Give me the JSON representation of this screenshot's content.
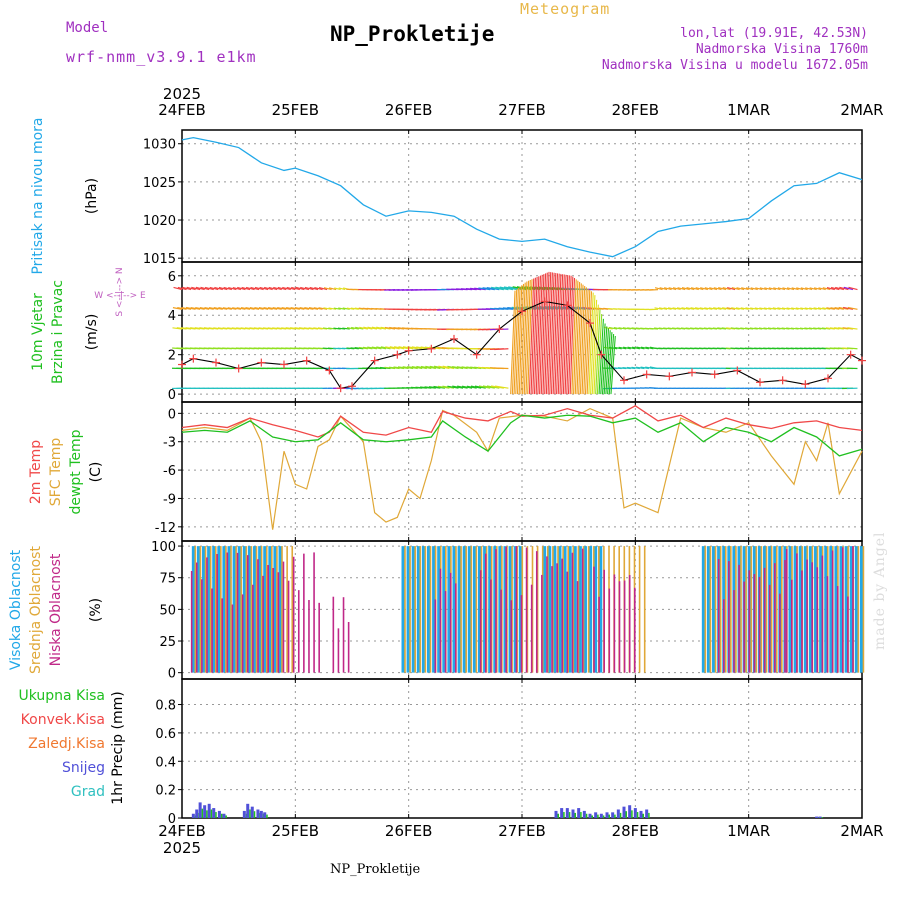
{
  "header": {
    "title": "NP_Prokletije",
    "meteogram": "Meteogram",
    "model_label": "Model",
    "model_name": "wrf-nmm_v3.9.1 e1km",
    "lonlat": "lon,lat (19.91E, 42.53N)",
    "elevation": "Nadmorska Visina 1760m",
    "model_elevation": "Nadmorska Visina u modelu 1672.05m"
  },
  "footer": {
    "station": "NP_Prokletije",
    "credit": "made by Angel"
  },
  "colors": {
    "pressure": "#22a8e8",
    "temp2m": "#f04848",
    "sfc": "#e0a838",
    "dew": "#20c020",
    "high_cloud": "#22a8e8",
    "mid_cloud": "#e0a838",
    "low_cloud": "#c02888",
    "total": "#20c020",
    "conv": "#f04848",
    "frozen": "#f07830",
    "snow": "#5050d8",
    "hail": "#30c0c0",
    "wind_axis": "#20c020",
    "dir_label": "#c060c0"
  },
  "chart_data": [
    {
      "type": "line",
      "panel": "pressure",
      "ylabel": "Pritisak na nivou mora",
      "unit": "(hPa)",
      "ylim": [
        1014.5,
        1031.8
      ],
      "yticks": [
        1015,
        1020,
        1025,
        1030
      ],
      "x_dates": [
        "24FEB",
        "25FEB",
        "26FEB",
        "27FEB",
        "28FEB",
        "1MAR",
        "2MAR"
      ],
      "year": "2025",
      "grid": true,
      "series": [
        {
          "x": [
            0,
            0.1,
            0.3,
            0.5,
            0.7,
            0.9,
            1.0,
            1.2,
            1.4,
            1.6,
            1.8,
            2.0,
            2.2,
            2.4,
            2.6,
            2.8,
            3.0,
            3.2,
            3.4,
            3.6,
            3.8,
            4.0,
            4.2,
            4.4,
            4.6,
            4.8,
            5.0,
            5.2,
            5.4,
            5.6,
            5.8,
            6.0
          ],
          "y": [
            1030.5,
            1030.8,
            1030.2,
            1029.5,
            1027.5,
            1026.5,
            1026.8,
            1025.8,
            1024.5,
            1022.0,
            1020.5,
            1021.2,
            1021.0,
            1020.5,
            1018.8,
            1017.5,
            1017.2,
            1017.5,
            1016.5,
            1015.8,
            1015.2,
            1016.5,
            1018.5,
            1019.2,
            1019.5,
            1019.8,
            1020.2,
            1022.5,
            1024.5,
            1024.8,
            1026.2,
            1025.3
          ]
        }
      ]
    },
    {
      "type": "line",
      "panel": "wind",
      "ylabel": "10m Vjetar Brzina i Pravac",
      "unit": "(m/s)",
      "direction_legend": "W <--|--> E   S <--|--> N",
      "ylim": [
        -0.4,
        6.7
      ],
      "yticks": [
        0,
        2,
        4,
        6
      ],
      "grid": true,
      "series": [
        {
          "name": "speed",
          "x": [
            0,
            0.1,
            0.3,
            0.5,
            0.7,
            0.9,
            1.1,
            1.3,
            1.4,
            1.5,
            1.7,
            1.9,
            2.0,
            2.2,
            2.4,
            2.6,
            2.8,
            3.0,
            3.2,
            3.4,
            3.6,
            3.7,
            3.9,
            4.1,
            4.3,
            4.5,
            4.7,
            4.9,
            5.1,
            5.3,
            5.5,
            5.7,
            5.9,
            6.0
          ],
          "y": [
            1.5,
            1.8,
            1.6,
            1.3,
            1.6,
            1.5,
            1.7,
            1.2,
            0.3,
            0.4,
            1.7,
            2.0,
            2.2,
            2.3,
            2.8,
            2.0,
            3.3,
            4.2,
            4.7,
            4.5,
            3.6,
            2.0,
            0.7,
            1.0,
            0.9,
            1.1,
            1.0,
            1.2,
            0.6,
            0.7,
            0.5,
            0.8,
            2.0,
            1.7
          ]
        }
      ]
    },
    {
      "type": "line",
      "panel": "temperature",
      "ylabel": "2m Temp / SFC Temp / dewpt Temp",
      "unit": "(C)",
      "ylim": [
        -13.5,
        1.2
      ],
      "yticks": [
        0,
        -3,
        -6,
        -9,
        -12
      ],
      "grid": true,
      "series": [
        {
          "name": "2m Temp",
          "x": [
            0,
            0.2,
            0.4,
            0.6,
            0.8,
            1.0,
            1.2,
            1.3,
            1.4,
            1.6,
            1.8,
            2.0,
            2.2,
            2.3,
            2.5,
            2.7,
            2.9,
            3.0,
            3.2,
            3.4,
            3.6,
            3.8,
            4.0,
            4.2,
            4.4,
            4.6,
            4.8,
            5.0,
            5.2,
            5.4,
            5.6,
            5.8,
            6.0
          ],
          "y": [
            -1.5,
            -1.2,
            -1.5,
            -0.5,
            -1.2,
            -1.8,
            -2.5,
            -2.0,
            -0.3,
            -2.0,
            -2.3,
            -1.5,
            -2.0,
            0.2,
            -0.5,
            -0.8,
            0.2,
            -0.3,
            -0.2,
            0.5,
            -0.2,
            -0.5,
            0.8,
            -0.8,
            -0.2,
            -1.5,
            -0.5,
            -1.2,
            -1.6,
            -1.0,
            -0.8,
            -1.5,
            -1.8
          ]
        },
        {
          "name": "SFC Temp",
          "x": [
            0,
            0.2,
            0.4,
            0.6,
            0.7,
            0.8,
            0.9,
            1.0,
            1.1,
            1.2,
            1.3,
            1.4,
            1.6,
            1.7,
            1.8,
            1.9,
            2.0,
            2.1,
            2.2,
            2.3,
            2.4,
            2.6,
            2.7,
            2.8,
            3.0,
            3.2,
            3.4,
            3.6,
            3.8,
            3.9,
            4.0,
            4.2,
            4.4,
            4.6,
            4.8,
            5.0,
            5.2,
            5.4,
            5.5,
            5.6,
            5.7,
            5.8,
            6.0
          ],
          "y": [
            -1.8,
            -1.5,
            -1.8,
            -0.5,
            -3.0,
            -12.3,
            -4.0,
            -7.5,
            -8.0,
            -3.5,
            -2.8,
            -0.3,
            -3.0,
            -10.5,
            -11.5,
            -11.0,
            -8.0,
            -9.0,
            -5.0,
            0.3,
            -0.2,
            -2.0,
            -4.0,
            -0.5,
            -0.2,
            -0.3,
            -0.8,
            0.5,
            -0.5,
            -10.0,
            -9.5,
            -10.5,
            -0.5,
            -1.5,
            -2.0,
            -1.0,
            -4.5,
            -7.5,
            -3.0,
            -5.0,
            -1.0,
            -8.5,
            -4.0
          ]
        },
        {
          "name": "dewpt Temp",
          "x": [
            0,
            0.2,
            0.4,
            0.6,
            0.8,
            1.0,
            1.2,
            1.4,
            1.6,
            1.8,
            2.0,
            2.2,
            2.3,
            2.5,
            2.7,
            2.9,
            3.0,
            3.2,
            3.4,
            3.6,
            3.8,
            4.0,
            4.2,
            4.4,
            4.6,
            4.8,
            5.0,
            5.2,
            5.4,
            5.6,
            5.8,
            6.0
          ],
          "y": [
            -2.0,
            -1.8,
            -2.0,
            -0.8,
            -2.5,
            -3.0,
            -2.8,
            -1.0,
            -2.8,
            -3.0,
            -2.8,
            -2.5,
            -0.8,
            -2.5,
            -4.0,
            -1.0,
            -0.2,
            -0.5,
            -0.2,
            -0.3,
            -1.0,
            -0.5,
            -2.0,
            -1.0,
            -3.0,
            -1.5,
            -2.0,
            -3.0,
            -1.5,
            -2.5,
            -4.5,
            -3.8
          ]
        }
      ]
    },
    {
      "type": "bar",
      "panel": "cloud",
      "ylabel": "Visoka Oblacnost / Srednja Oblacnost / Niska Oblacnost",
      "unit": "(%)",
      "ylim": [
        -5,
        104
      ],
      "yticks": [
        0,
        25,
        50,
        75,
        100
      ],
      "grid": true,
      "series": [
        {
          "name": "Visoka Oblacnost",
          "segments": [
            [
              0.1,
              0.9,
              100
            ],
            [
              1.95,
              3.0,
              100
            ],
            [
              3.2,
              3.7,
              100
            ],
            [
              4.6,
              6.0,
              100
            ]
          ]
        },
        {
          "name": "Srednja Oblacnost",
          "segments": [
            [
              0.1,
              1.0,
              100
            ],
            [
              1.95,
              4.1,
              100
            ],
            [
              4.6,
              6.0,
              100
            ]
          ]
        },
        {
          "name": "Niska Oblacnost",
          "segments": [
            [
              0.05,
              1.2,
              95
            ],
            [
              1.3,
              1.45,
              60
            ],
            [
              2.2,
              2.4,
              85
            ],
            [
              2.6,
              3.5,
              100
            ],
            [
              3.6,
              4.0,
              85
            ],
            [
              4.7,
              5.3,
              90
            ],
            [
              5.3,
              5.9,
              100
            ]
          ]
        }
      ]
    },
    {
      "type": "bar",
      "panel": "precip",
      "ylabel": "1hr Precip (mm)",
      "legend": [
        "Ukupna Kisa",
        "Konvek.Kisa",
        "Zaledj.Kisa",
        "Snijeg",
        "Grad"
      ],
      "ylim": [
        0,
        0.98
      ],
      "yticks": [
        0,
        0.2,
        0.4,
        0.6,
        0.8
      ],
      "grid": true,
      "series": [
        {
          "name": "Snijeg",
          "x": [
            0.1,
            0.13,
            0.16,
            0.2,
            0.24,
            0.28,
            0.33,
            0.37,
            0.55,
            0.58,
            0.62,
            0.67,
            0.7,
            0.73,
            3.3,
            3.35,
            3.4,
            3.45,
            3.5,
            3.55,
            3.6,
            3.65,
            3.7,
            3.75,
            3.8,
            3.85,
            3.9,
            3.95,
            4.0,
            4.05,
            4.1,
            5.6,
            5.63
          ],
          "y": [
            0.03,
            0.06,
            0.11,
            0.09,
            0.1,
            0.07,
            0.05,
            0.03,
            0.05,
            0.1,
            0.08,
            0.06,
            0.05,
            0.04,
            0.05,
            0.07,
            0.07,
            0.06,
            0.07,
            0.05,
            0.03,
            0.04,
            0.03,
            0.04,
            0.04,
            0.06,
            0.08,
            0.09,
            0.07,
            0.05,
            0.06,
            0.01,
            0.01
          ]
        }
      ]
    }
  ]
}
